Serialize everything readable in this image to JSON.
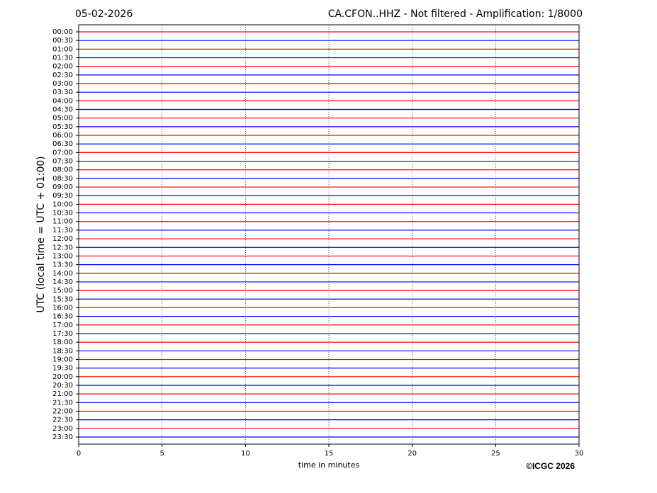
{
  "chart_data": {
    "type": "helicorder",
    "date": "05-02-2026",
    "title": "CA.CFON..HHZ - Not filtered - Amplification: 1/8000",
    "ylabel": "UTC (local time = UTC + 01:00)",
    "xlabel": "time in minutes",
    "credit": "©ICGC 2026",
    "categories": [
      "00:00",
      "00:30",
      "01:00",
      "01:30",
      "02:00",
      "02:30",
      "03:00",
      "03:30",
      "04:00",
      "04:30",
      "05:00",
      "05:30",
      "06:00",
      "06:30",
      "07:00",
      "07:30",
      "08:00",
      "08:30",
      "09:00",
      "09:30",
      "10:00",
      "10:30",
      "11:00",
      "11:30",
      "12:00",
      "12:30",
      "13:00",
      "13:30",
      "14:00",
      "14:30",
      "15:00",
      "15:30",
      "16:00",
      "16:30",
      "17:00",
      "17:30",
      "18:00",
      "18:30",
      "19:00",
      "19:30",
      "20:00",
      "20:30",
      "21:00",
      "21:30",
      "22:00",
      "22:30",
      "23:00",
      "23:30"
    ],
    "colors": [
      "#ff0000",
      "#0000ff"
    ],
    "xlim": [
      0,
      30
    ],
    "xticks": [
      0,
      5,
      10,
      15,
      20,
      25,
      30
    ],
    "grid": true
  }
}
